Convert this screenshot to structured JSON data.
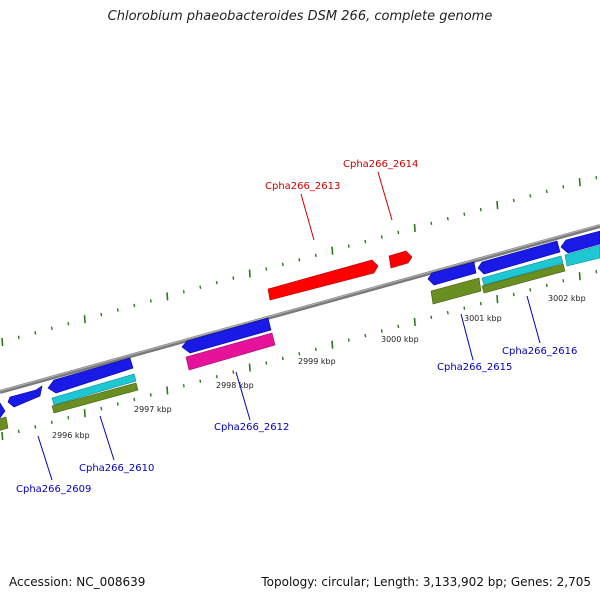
{
  "title": "Chlorobium phaeobacteroides DSM 266, complete genome",
  "footer": {
    "accession": "Accession: NC_008639",
    "summary": "Topology: circular; Length: 3,133,902 bp; Genes: 2,705"
  },
  "colors": {
    "backbone": "#888888",
    "tick": "#2a7a1a",
    "highlight_gene": "#ff0000",
    "gene_blue": "#1a1ae6",
    "gene_cyan": "#1ec8d2",
    "gene_olive": "#6b8e23",
    "gene_magenta": "#e6139a",
    "label_highlight": "#cc0000",
    "label_normal": "#0000bb"
  },
  "scale_labels": [
    {
      "text": "2996 kbp",
      "kbp": 2996
    },
    {
      "text": "2997 kbp",
      "kbp": 2997
    },
    {
      "text": "2998 kbp",
      "kbp": 2998
    },
    {
      "text": "2999 kbp",
      "kbp": 2999
    },
    {
      "text": "3000 kbp",
      "kbp": 3000
    },
    {
      "text": "3001 kbp",
      "kbp": 3001
    },
    {
      "text": "3002 kbp",
      "kbp": 3002
    }
  ],
  "gene_labels": [
    {
      "text": "Cpha266_2613",
      "highlight": true
    },
    {
      "text": "Cpha266_2614",
      "highlight": true
    },
    {
      "text": "Cpha266_2609",
      "highlight": false
    },
    {
      "text": "Cpha266_2610",
      "highlight": false
    },
    {
      "text": "Cpha266_2612",
      "highlight": false
    },
    {
      "text": "Cpha266_2615",
      "highlight": false
    },
    {
      "text": "Cpha266_2616",
      "highlight": false
    }
  ]
}
